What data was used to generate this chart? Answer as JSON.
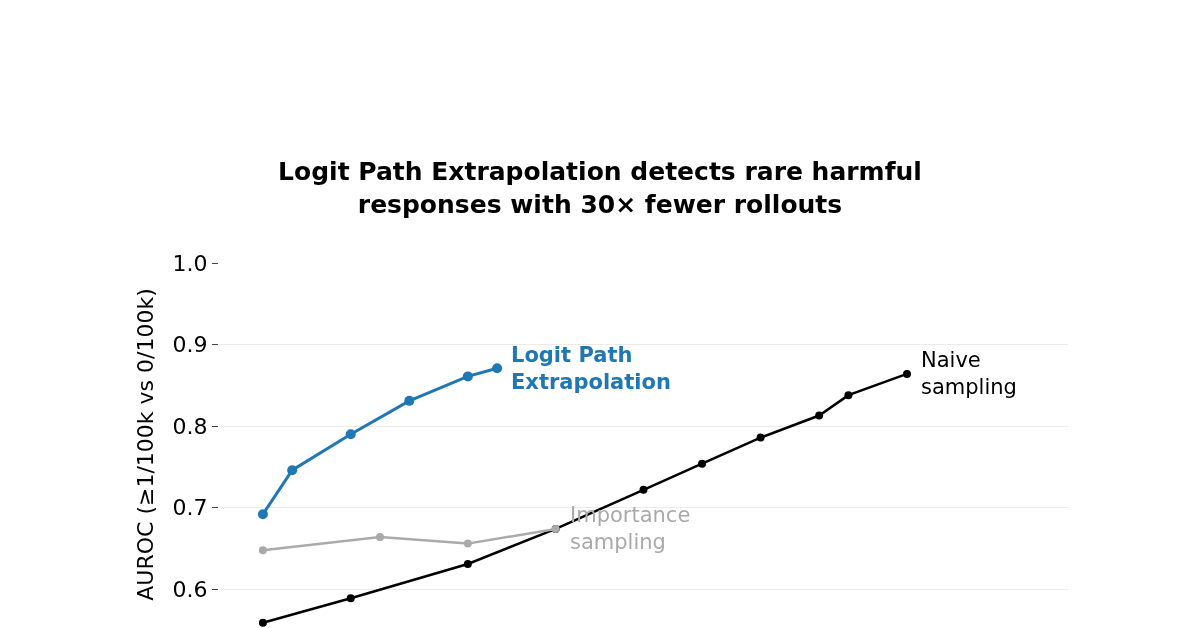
{
  "chart_data": {
    "type": "line",
    "title": "Logit Path Extrapolation detects rare harmful responses with 30× fewer rollouts",
    "ylabel": "AUROC (≥1/100k vs 0/100k)",
    "categories": [
      null,
      null,
      null,
      null,
      null,
      null,
      null,
      null,
      null,
      null,
      null,
      null,
      null,
      null,
      null,
      null,
      null,
      null,
      null,
      null,
      null,
      null,
      null,
      null,
      null,
      null,
      null,
      null,
      null
    ],
    "series": [
      {
        "name": "Logit Path Extrapolation",
        "color": "#1f77b4",
        "values": [
          null,
          0.692,
          0.746,
          null,
          0.79,
          null,
          0.831,
          null,
          0.861,
          0.871,
          null,
          null,
          null,
          null,
          null,
          null,
          null,
          null,
          null,
          null,
          null,
          null,
          null,
          null,
          null,
          null,
          null,
          null,
          null
        ]
      },
      {
        "name": "Importance sampling",
        "color": "#aaaaaa",
        "values": [
          null,
          0.648,
          null,
          null,
          null,
          0.664,
          null,
          null,
          0.656,
          null,
          null,
          0.674,
          null,
          null,
          null,
          null,
          null,
          null,
          null,
          null,
          null,
          null,
          null,
          null,
          null,
          null,
          null,
          null,
          null
        ]
      },
      {
        "name": "Naive sampling",
        "color": "#000000",
        "values": [
          null,
          0.559,
          null,
          null,
          0.589,
          null,
          null,
          null,
          0.631,
          null,
          null,
          0.674,
          null,
          null,
          0.722,
          null,
          0.754,
          null,
          0.786,
          null,
          0.813,
          0.838,
          null,
          0.864,
          null,
          null,
          null,
          null,
          null
        ]
      }
    ],
    "ylim": [
      0.555,
      1.0
    ],
    "yticks": [
      0.6,
      0.7,
      0.8,
      0.9,
      {
        "value": 1.0,
        "label": "1.0"
      }
    ],
    "grid": "y",
    "legend": "right",
    "marker": "circle",
    "line_style": "solid"
  }
}
